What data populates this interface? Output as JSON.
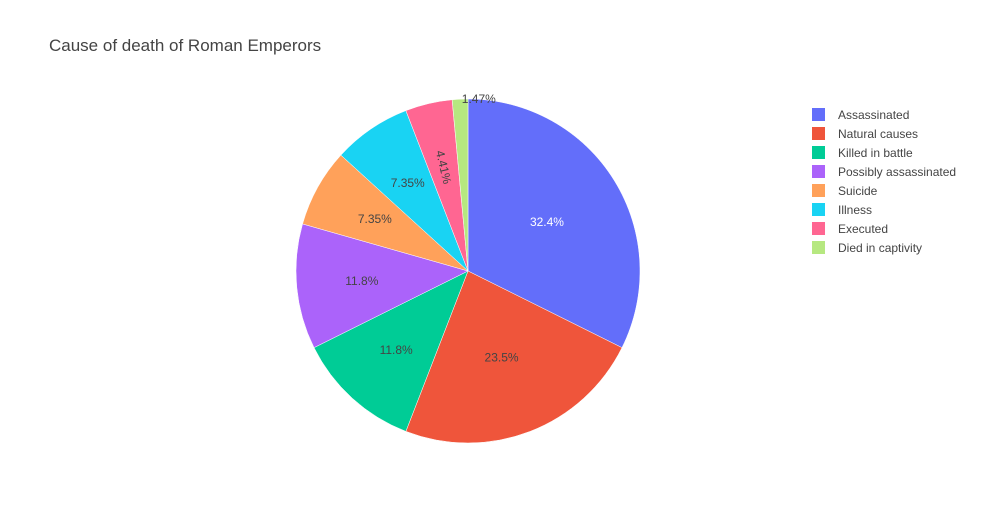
{
  "chart_data": {
    "type": "pie",
    "title": "Cause of death of Roman Emperors",
    "categories": [
      "Assassinated",
      "Natural causes",
      "Killed in battle",
      "Possibly assassinated",
      "Suicide",
      "Illness",
      "Executed",
      "Died in captivity"
    ],
    "values": [
      22,
      16,
      8,
      8,
      5,
      5,
      3,
      1
    ],
    "percent_labels": [
      "32.4%",
      "23.5%",
      "11.8%",
      "11.8%",
      "7.35%",
      "7.35%",
      "4.41%",
      "1.47%"
    ],
    "colors": [
      "#636efa",
      "#ef553b",
      "#00cc96",
      "#ab63fa",
      "#ffa15a",
      "#19d3f3",
      "#ff6692",
      "#b6e880"
    ],
    "label_colors": [
      "#ffffff",
      "#444444",
      "#444444",
      "#444444",
      "#444444",
      "#444444",
      "#444444",
      "#444444"
    ],
    "legend_position": "right",
    "start_angle": "top",
    "direction": "clockwise"
  }
}
